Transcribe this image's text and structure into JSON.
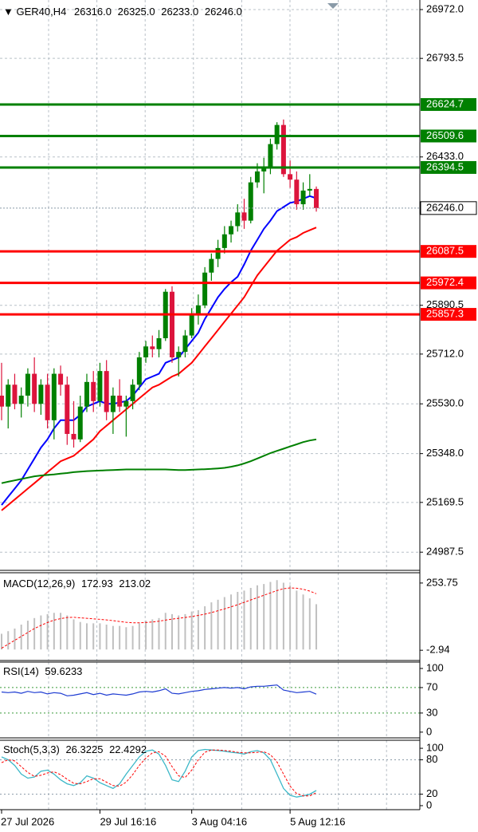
{
  "chart_data": [
    {
      "type": "candlestick",
      "title": "GER40,H4",
      "header_values": [
        {
          "value": 26316,
          "label": "26316.0"
        },
        {
          "value": 26325,
          "label": "26325.0"
        },
        {
          "value": 26233,
          "label": "26233.0"
        },
        {
          "value": 26246,
          "label": "26246.0"
        }
      ],
      "categories": [
        "27 Jul 2026",
        null,
        null,
        null,
        null,
        null,
        null,
        null,
        null,
        null,
        null,
        null,
        null,
        null,
        null,
        "29 Jul 16:16",
        null,
        null,
        null,
        null,
        null,
        null,
        null,
        null,
        null,
        null,
        null,
        null,
        null,
        "3 Aug 04:16",
        null,
        null,
        null,
        null,
        null,
        null,
        null,
        null,
        null,
        null,
        null,
        null,
        null,
        null,
        "5 Aug 12:16",
        null,
        null,
        null,
        null
      ],
      "open": [
        25560,
        25520,
        25600,
        25530,
        25560,
        25640,
        25530,
        25600,
        25470,
        25640,
        25600,
        25420,
        25400,
        25520,
        25610,
        25540,
        25650,
        25500,
        25560,
        25520,
        25540,
        25600,
        25700,
        25740,
        25730,
        25770,
        25940,
        25700,
        25720,
        25780,
        25860,
        25890,
        26010,
        26060,
        26100,
        26150,
        26180,
        26230,
        26200,
        26340,
        26380,
        26390,
        26480,
        26550,
        26370,
        26350,
        26260,
        26310,
        26316
      ],
      "high": [
        25680,
        25620,
        25640,
        25590,
        25660,
        25700,
        25620,
        25640,
        25660,
        25670,
        25630,
        25540,
        25560,
        25640,
        25650,
        25680,
        25690,
        25590,
        25620,
        25560,
        25620,
        25720,
        25760,
        25780,
        25800,
        25950,
        25960,
        25740,
        25800,
        25880,
        25930,
        26030,
        26080,
        26130,
        26180,
        26200,
        26260,
        26280,
        26360,
        26410,
        26430,
        26500,
        26560,
        26570,
        26420,
        26380,
        26340,
        26370,
        26325
      ],
      "low": [
        25470,
        25440,
        25510,
        25480,
        25520,
        25500,
        25490,
        25440,
        25400,
        25560,
        25380,
        25370,
        25390,
        25500,
        25500,
        25520,
        25470,
        25420,
        25500,
        25410,
        25510,
        25580,
        25680,
        25700,
        25700,
        25760,
        25680,
        25630,
        25700,
        25770,
        25820,
        25880,
        25980,
        26030,
        26080,
        26120,
        26160,
        26170,
        26190,
        26320,
        26300,
        26370,
        26460,
        26360,
        26320,
        26240,
        26240,
        26290,
        26233
      ],
      "close": [
        25520,
        25600,
        25530,
        25560,
        25640,
        25530,
        25600,
        25470,
        25640,
        25600,
        25420,
        25400,
        25520,
        25610,
        25540,
        25650,
        25500,
        25560,
        25520,
        25540,
        25600,
        25700,
        25740,
        25730,
        25770,
        25940,
        25700,
        25720,
        25780,
        25860,
        25890,
        26010,
        26060,
        26100,
        26150,
        26180,
        26230,
        26200,
        26340,
        26380,
        26390,
        26480,
        26550,
        26370,
        26350,
        26260,
        26310,
        26316,
        26246
      ],
      "up_color": "#008000",
      "down_color": "#dc143c",
      "overlays": [
        {
          "color": "#0000ff",
          "values": [
            25160,
            25190,
            25220,
            25250,
            25290,
            25330,
            25370,
            25400,
            25440,
            25470,
            25470,
            25470,
            25490,
            25520,
            25530,
            25540,
            25530,
            25530,
            25535,
            25540,
            25560,
            25590,
            25620,
            25630,
            25640,
            25680,
            25690,
            25700,
            25730,
            25760,
            25790,
            25840,
            25880,
            25920,
            25950,
            25975,
            25995,
            26040,
            26090,
            26130,
            26170,
            26200,
            26235,
            26250,
            26265,
            26270,
            26280,
            26290,
            26282
          ]
        },
        {
          "color": "#ff0000",
          "values": [
            25140,
            25160,
            25180,
            25200,
            25220,
            25240,
            25260,
            25280,
            25300,
            25320,
            25330,
            25340,
            25360,
            25380,
            25400,
            25430,
            25450,
            25470,
            25490,
            25510,
            25530,
            25550,
            25570,
            25590,
            25600,
            25615,
            25630,
            25640,
            25660,
            25680,
            25710,
            25740,
            25770,
            25800,
            25830,
            25860,
            25890,
            25920,
            25960,
            26000,
            26030,
            26060,
            26090,
            26110,
            26130,
            26140,
            26155,
            26165,
            26175
          ]
        },
        {
          "color": "#008000",
          "values": [
            25240,
            25245,
            25250,
            25255,
            25260,
            25265,
            25268,
            25270,
            25272,
            25275,
            25277,
            25280,
            25282,
            25284,
            25285,
            25286,
            25287,
            25288,
            25289,
            25290,
            25290,
            25290,
            25290,
            25290,
            25290,
            25290,
            25289,
            25288,
            25288,
            25289,
            25290,
            25291,
            25292,
            25294,
            25296,
            25300,
            25305,
            25312,
            25320,
            25330,
            25340,
            25350,
            25358,
            25366,
            25374,
            25382,
            25390,
            25396,
            25400
          ]
        }
      ],
      "levels": [
        {
          "value": 26624.7,
          "color": "#008000"
        },
        {
          "value": 26509.6,
          "color": "#008000"
        },
        {
          "value": 26394.5,
          "color": "#008000"
        },
        {
          "value": 26087.5,
          "color": "#ff0000"
        },
        {
          "value": 25972.4,
          "color": "#ff0000"
        },
        {
          "value": 25857.3,
          "color": "#ff0000"
        }
      ],
      "current_price": {
        "value": 26246,
        "label": "26246.0"
      },
      "ylim": [
        24921,
        27007
      ],
      "yticks": [
        {
          "value": 26972,
          "label": "26972.0"
        },
        26793.5,
        {
          "value": 26433,
          "label": "26433.0"
        },
        25890.5,
        {
          "value": 25712,
          "label": "25712.0"
        },
        {
          "value": 25530,
          "label": "25530.0"
        },
        {
          "value": 25348,
          "label": "25348.0"
        },
        25169.5,
        24987.5
      ],
      "grid": true
    },
    {
      "type": "macd",
      "title": "MACD(12,26,9)",
      "histogram": [
        60,
        70,
        80,
        95,
        110,
        120,
        130,
        135,
        140,
        140,
        130,
        115,
        105,
        100,
        100,
        100,
        95,
        90,
        90,
        85,
        90,
        100,
        110,
        115,
        120,
        140,
        135,
        130,
        135,
        145,
        150,
        165,
        180,
        190,
        200,
        210,
        220,
        225,
        235,
        245,
        250,
        258,
        265,
        255,
        245,
        225,
        210,
        195,
        172.93
      ],
      "signal": [
        5,
        20,
        35,
        50,
        65,
        80,
        92,
        103,
        112,
        118,
        122,
        123,
        121,
        119,
        117,
        115,
        113,
        110,
        107,
        104,
        102,
        102,
        103,
        105,
        108,
        112,
        116,
        119,
        122,
        126,
        130,
        135,
        141,
        148,
        155,
        163,
        171,
        180,
        189,
        198,
        207,
        216,
        225,
        232,
        235,
        234,
        230,
        223,
        213.02
      ],
      "histogram_color": "#c0c0c0",
      "signal_color": "#ff0000",
      "ylim": [
        -42,
        293
      ],
      "yticks": [
        253.75,
        -2.94
      ]
    },
    {
      "type": "rsi",
      "title": "RSI(14)",
      "values": [
        63,
        62,
        63,
        61,
        64,
        62,
        63,
        60,
        62,
        61,
        57,
        58,
        60,
        62,
        59,
        61,
        58,
        60,
        59,
        58,
        60,
        63,
        64,
        63,
        65,
        68,
        61,
        60,
        62,
        64,
        65,
        67,
        68,
        69,
        70,
        69,
        70,
        68,
        71,
        72,
        72,
        73,
        74,
        66,
        64,
        62,
        63,
        64,
        59.6233
      ],
      "color": "#1e3cd2",
      "levels": [
        70,
        30
      ],
      "ylim": [
        -9,
        110
      ],
      "yticks": [
        100,
        70,
        30,
        0
      ]
    },
    {
      "type": "stochastic",
      "title": "Stoch(5,3,3)",
      "k": [
        85,
        80,
        70,
        55,
        48,
        50,
        60,
        62,
        55,
        45,
        38,
        35,
        40,
        52,
        48,
        40,
        35,
        30,
        38,
        55,
        70,
        85,
        95,
        97,
        90,
        70,
        45,
        42,
        60,
        85,
        96,
        98,
        97,
        96,
        95,
        93,
        92,
        90,
        94,
        96,
        92,
        80,
        55,
        30,
        18,
        15,
        17,
        20,
        26.3225
      ],
      "d": [
        75,
        80,
        78,
        68,
        58,
        51,
        53,
        57,
        59,
        54,
        46,
        39,
        38,
        42,
        47,
        47,
        41,
        35,
        34,
        41,
        54,
        70,
        83,
        92,
        94,
        86,
        68,
        52,
        49,
        62,
        80,
        93,
        97,
        97,
        96,
        95,
        93,
        92,
        92,
        93,
        94,
        89,
        76,
        55,
        34,
        21,
        17,
        17,
        22.4292
      ],
      "k_color": "#3cb8c8",
      "d_color": "#ff0000",
      "levels": [
        80,
        20
      ],
      "ylim": [
        -7,
        114
      ],
      "yticks": [
        100,
        80,
        20,
        0
      ]
    }
  ]
}
